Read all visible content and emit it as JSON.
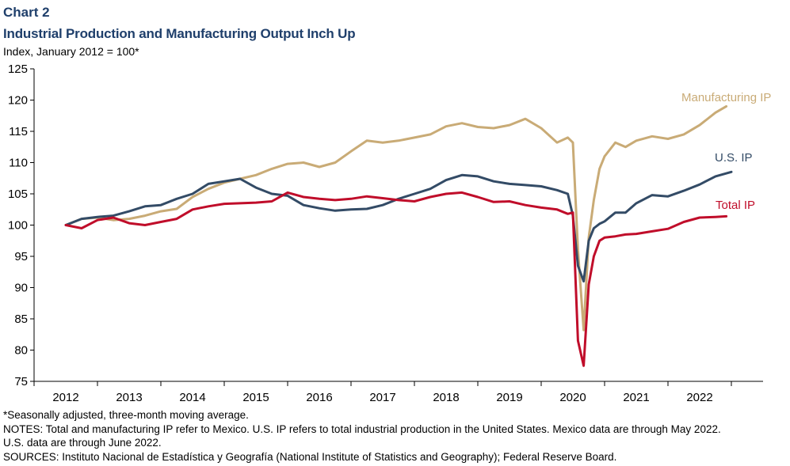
{
  "header": {
    "chart_number": "Chart 2",
    "title": "Industrial Production and Manufacturing Output Inch Up",
    "subtitle": "Index, January 2012 = 100*"
  },
  "chart_data": {
    "type": "line",
    "title": "Industrial Production and Manufacturing Output Inch Up",
    "ylabel": "Index, January 2012 = 100*",
    "xlabel": "",
    "ylim": [
      75,
      125
    ],
    "yticks": [
      75,
      80,
      85,
      90,
      95,
      100,
      105,
      110,
      115,
      120,
      125
    ],
    "xlim": [
      2011.5,
      2023.0
    ],
    "xtick_labels": [
      "2012",
      "2013",
      "2014",
      "2015",
      "2016",
      "2017",
      "2018",
      "2019",
      "2020",
      "2021",
      "2022"
    ],
    "grid": false,
    "series": [
      {
        "name": "Manufacturing IP",
        "color": "#c9ab76",
        "x": [
          2012.0,
          2012.25,
          2012.5,
          2012.75,
          2013.0,
          2013.25,
          2013.5,
          2013.75,
          2014.0,
          2014.25,
          2014.5,
          2014.75,
          2015.0,
          2015.25,
          2015.5,
          2015.75,
          2016.0,
          2016.25,
          2016.5,
          2016.75,
          2017.0,
          2017.25,
          2017.5,
          2017.75,
          2018.0,
          2018.25,
          2018.5,
          2018.75,
          2019.0,
          2019.25,
          2019.5,
          2019.75,
          2019.92,
          2020.0,
          2020.08,
          2020.17,
          2020.25,
          2020.33,
          2020.42,
          2020.5,
          2020.67,
          2020.83,
          2021.0,
          2021.25,
          2021.5,
          2021.75,
          2022.0,
          2022.25,
          2022.42
        ],
        "values": [
          100.0,
          101.0,
          101.2,
          100.8,
          101.0,
          101.5,
          102.2,
          102.6,
          104.5,
          105.8,
          106.8,
          107.4,
          108.0,
          109.0,
          109.8,
          110.0,
          109.3,
          110.0,
          111.8,
          113.5,
          113.2,
          113.5,
          114.0,
          114.5,
          115.8,
          116.3,
          115.7,
          115.5,
          116.0,
          117.0,
          115.5,
          113.2,
          114.0,
          113.2,
          96.0,
          83.2,
          98.0,
          104.0,
          109.0,
          111.0,
          113.2,
          112.5,
          113.5,
          114.2,
          113.8,
          114.5,
          116.0,
          118.0,
          119.0
        ]
      },
      {
        "name": "U.S. IP",
        "color": "#334b66",
        "x": [
          2012.0,
          2012.25,
          2012.5,
          2012.75,
          2013.0,
          2013.25,
          2013.5,
          2013.75,
          2014.0,
          2014.25,
          2014.5,
          2014.75,
          2015.0,
          2015.25,
          2015.5,
          2015.75,
          2016.0,
          2016.25,
          2016.5,
          2016.75,
          2017.0,
          2017.25,
          2017.5,
          2017.75,
          2018.0,
          2018.25,
          2018.5,
          2018.75,
          2019.0,
          2019.25,
          2019.5,
          2019.75,
          2019.92,
          2020.0,
          2020.08,
          2020.17,
          2020.25,
          2020.33,
          2020.42,
          2020.5,
          2020.67,
          2020.83,
          2021.0,
          2021.25,
          2021.5,
          2021.75,
          2022.0,
          2022.25,
          2022.5
        ],
        "values": [
          100.0,
          101.0,
          101.3,
          101.5,
          102.2,
          103.0,
          103.2,
          104.2,
          105.0,
          106.6,
          107.0,
          107.4,
          106.0,
          105.0,
          104.7,
          103.2,
          102.7,
          102.3,
          102.5,
          102.6,
          103.2,
          104.2,
          105.0,
          105.8,
          107.2,
          108.0,
          107.8,
          107.0,
          106.6,
          106.4,
          106.2,
          105.6,
          105.0,
          101.5,
          93.5,
          91.0,
          97.5,
          99.5,
          100.2,
          100.6,
          102.0,
          102.0,
          103.5,
          104.8,
          104.6,
          105.5,
          106.5,
          107.8,
          108.5
        ]
      },
      {
        "name": "Total IP",
        "color": "#c00d2a",
        "x": [
          2012.0,
          2012.25,
          2012.5,
          2012.75,
          2013.0,
          2013.25,
          2013.5,
          2013.75,
          2014.0,
          2014.25,
          2014.5,
          2014.75,
          2015.0,
          2015.25,
          2015.5,
          2015.75,
          2016.0,
          2016.25,
          2016.5,
          2016.75,
          2017.0,
          2017.25,
          2017.5,
          2017.75,
          2018.0,
          2018.25,
          2018.5,
          2018.75,
          2019.0,
          2019.25,
          2019.5,
          2019.75,
          2019.92,
          2020.0,
          2020.08,
          2020.17,
          2020.25,
          2020.33,
          2020.42,
          2020.5,
          2020.67,
          2020.83,
          2021.0,
          2021.25,
          2021.5,
          2021.75,
          2022.0,
          2022.25,
          2022.42
        ],
        "values": [
          100.0,
          99.5,
          100.8,
          101.2,
          100.3,
          100.0,
          100.5,
          101.0,
          102.5,
          103.0,
          103.4,
          103.5,
          103.6,
          103.8,
          105.2,
          104.5,
          104.2,
          104.0,
          104.2,
          104.6,
          104.3,
          104.0,
          103.8,
          104.5,
          105.0,
          105.2,
          104.5,
          103.7,
          103.8,
          103.2,
          102.8,
          102.5,
          101.8,
          102.0,
          81.5,
          77.5,
          90.5,
          95.0,
          97.5,
          98.0,
          98.2,
          98.5,
          98.6,
          99.0,
          99.4,
          100.5,
          101.2,
          101.3,
          101.4
        ]
      }
    ],
    "legend": [
      {
        "label": "Manufacturing IP",
        "position": "upper right, beside the end of the series"
      },
      {
        "label": "U.S. IP",
        "position": "right, beside the end of the series"
      },
      {
        "label": "Total IP",
        "position": "right, beside the end of the series"
      }
    ]
  },
  "notes": {
    "asterisk": "*Seasonally adjusted, three-month moving average.",
    "notes_line1": "NOTES: Total and manufacturing IP refer to Mexico. U.S. IP refers to total industrial production in the United States. Mexico data are through May 2022.",
    "notes_line2": "U.S. data are through June 2022.",
    "sources": "SOURCES: Instituto Nacional de Estadística y Geografía (National Institute of Statistics and Geography); Federal Reserve Board."
  }
}
